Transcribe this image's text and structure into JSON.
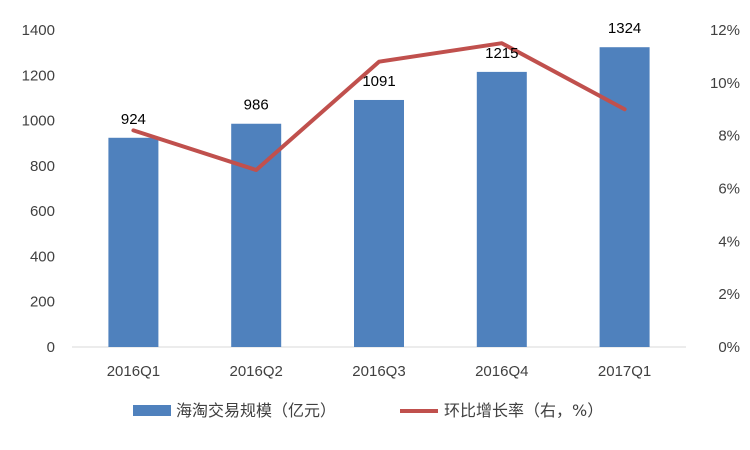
{
  "chart_data": {
    "type": "bar",
    "categories": [
      "2016Q1",
      "2016Q2",
      "2016Q3",
      "2016Q4",
      "2017Q1"
    ],
    "series": [
      {
        "name": "海淘交易规模（亿元）",
        "kind": "bar",
        "axis": "left",
        "color": "#4f81bd",
        "values": [
          924,
          986,
          1091,
          1215,
          1324
        ]
      },
      {
        "name": "环比增长率（右，%）",
        "kind": "line",
        "axis": "right",
        "color": "#c0504d",
        "values": [
          8.2,
          6.7,
          10.8,
          11.5,
          9.0
        ]
      }
    ],
    "left_axis": {
      "min": 0,
      "max": 1400,
      "step": 200,
      "tick_labels": [
        "0",
        "200",
        "400",
        "600",
        "800",
        "1000",
        "1200",
        "1400"
      ]
    },
    "right_axis": {
      "min": 0,
      "max": 12,
      "step": 2,
      "tick_labels": [
        "0%",
        "2%",
        "4%",
        "6%",
        "8%",
        "10%",
        "12%"
      ]
    },
    "data_labels": [
      "924",
      "986",
      "1091",
      "1215",
      "1324"
    ],
    "grid": false,
    "legend_position": "bottom"
  }
}
